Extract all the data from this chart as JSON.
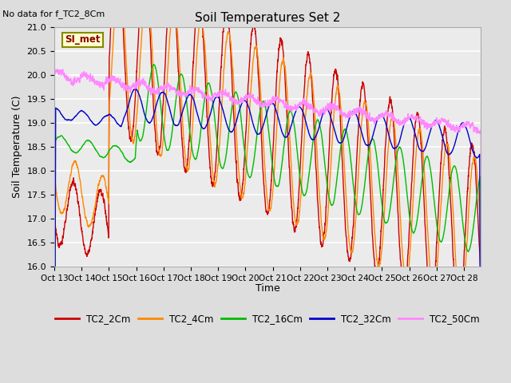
{
  "title": "Soil Temperatures Set 2",
  "no_data_text": "No data for f_TC2_8Cm",
  "ylabel": "Soil Temperature (C)",
  "xlabel": "Time",
  "annotation_label": "SI_met",
  "ylim": [
    16.0,
    21.0
  ],
  "yticks": [
    16.0,
    16.5,
    17.0,
    17.5,
    18.0,
    18.5,
    19.0,
    19.5,
    20.0,
    20.5,
    21.0
  ],
  "xlim": [
    0,
    375
  ],
  "xtick_positions": [
    0,
    24,
    48,
    72,
    96,
    120,
    144,
    168,
    192,
    216,
    240,
    264,
    288,
    312,
    336,
    360
  ],
  "xtick_labels": [
    "Oct 13",
    "Oct 14",
    "Oct 15",
    "Oct 16",
    "Oct 17",
    "Oct 18",
    "Oct 19",
    "Oct 20",
    "Oct 21",
    "Oct 22",
    "Oct 23",
    "Oct 24",
    "Oct 25",
    "Oct 26",
    "Oct 27",
    "Oct 28"
  ],
  "line_colors": {
    "TC2_2Cm": "#cc0000",
    "TC2_4Cm": "#ff8800",
    "TC2_16Cm": "#00bb00",
    "TC2_32Cm": "#0000cc",
    "TC2_50Cm": "#ff88ff"
  },
  "bg_color": "#dddddd",
  "plot_bg_color": "#ebebeb"
}
